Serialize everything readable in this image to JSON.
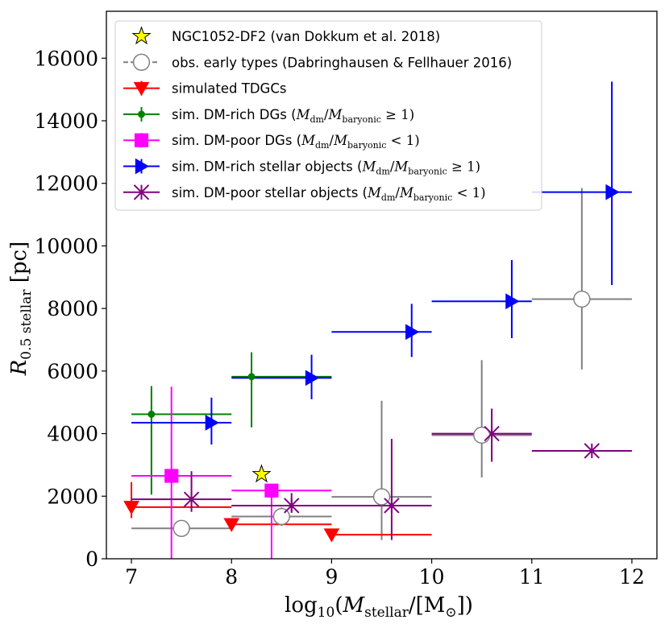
{
  "chart_data": {
    "type": "scatter",
    "xlabel": {
      "pre": "log",
      "sub1": "10",
      "mid": "(",
      "var": "M",
      "sub2": "stellar",
      "post": "/[M",
      "sub3": "⊙",
      "end": "])"
    },
    "ylabel": {
      "var": "R",
      "sub": "0.5 stellar",
      "post": " [pc]"
    },
    "xlim": [
      6.75,
      12.25
    ],
    "ylim": [
      0,
      17500
    ],
    "xticks": [
      7,
      8,
      9,
      10,
      11,
      12
    ],
    "yticks": [
      0,
      2000,
      4000,
      6000,
      8000,
      10000,
      12000,
      14000,
      16000
    ],
    "xtick_labels": [
      "7",
      "8",
      "9",
      "10",
      "11",
      "12"
    ],
    "ytick_labels": [
      "0",
      "2000",
      "4000",
      "6000",
      "8000",
      "10000",
      "12000",
      "14000",
      "16000"
    ],
    "grid": false,
    "legend_position": "top-left",
    "series": [
      {
        "name": "NGC1052-DF2 (van Dokkum et al. 2018)",
        "color": "#ffff00",
        "marker": "star",
        "edge": "#000000",
        "points": [
          {
            "x": 8.3,
            "y": 2700
          }
        ]
      },
      {
        "name": "obs. early types (Dabringhausen & Fellhauer 2016)",
        "color": "#808080",
        "marker": "circle-open",
        "edge": "#808080",
        "points": [
          {
            "x": 7.5,
            "y": 970,
            "xerr": [
              7.0,
              8.0
            ],
            "yerr": [
              700,
              1100
            ]
          },
          {
            "x": 8.5,
            "y": 1350,
            "xerr": [
              8.0,
              9.0
            ],
            "yerr": [
              1050,
              1650
            ]
          },
          {
            "x": 9.5,
            "y": 1980,
            "xerr": [
              9.0,
              10.0
            ],
            "yerr": [
              600,
              5050
            ]
          },
          {
            "x": 10.5,
            "y": 3950,
            "xerr": [
              10.0,
              11.0
            ],
            "yerr": [
              2600,
              6350
            ]
          },
          {
            "x": 11.5,
            "y": 8300,
            "xerr": [
              11.0,
              12.0
            ],
            "yerr": [
              6050,
              11850
            ]
          }
        ]
      },
      {
        "name": "simulated TDGCs",
        "color": "#ff0000",
        "marker": "triangle-down",
        "edge": "#ff0000",
        "points": [
          {
            "x": 7.0,
            "y": 1650,
            "xerr": [
              7.0,
              8.0
            ],
            "yerr": [
              1300,
              2450
            ]
          },
          {
            "x": 8.0,
            "y": 1100,
            "xerr": [
              8.0,
              9.0
            ],
            "yerr": [
              1050,
              1150
            ]
          },
          {
            "x": 9.0,
            "y": 770,
            "xerr": [
              9.0,
              10.0
            ],
            "yerr": [
              760,
              780
            ]
          }
        ]
      },
      {
        "name": "sim. DM-rich DGs",
        "math": "M_dm/M_baryonic ≥ 1",
        "color": "#008000",
        "marker": "dot",
        "edge": "#008000",
        "points": [
          {
            "x": 7.2,
            "y": 4620,
            "xerr": [
              7.0,
              8.0
            ],
            "yerr": [
              2050,
              5520
            ]
          },
          {
            "x": 8.2,
            "y": 5820,
            "xerr": [
              8.0,
              9.0
            ],
            "yerr": [
              4200,
              6600
            ]
          }
        ]
      },
      {
        "name": "sim. DM-poor DGs",
        "math": "M_dm/M_baryonic < 1",
        "color": "#ff00ff",
        "marker": "square",
        "edge": "#ff00ff",
        "points": [
          {
            "x": 7.4,
            "y": 2650,
            "xerr": [
              7.0,
              8.0
            ],
            "yerr": [
              0,
              5500
            ]
          },
          {
            "x": 8.4,
            "y": 2180,
            "xerr": [
              8.0,
              9.0
            ],
            "yerr": [
              0,
              2180
            ]
          }
        ]
      },
      {
        "name": "sim. DM-rich stellar objects",
        "math": "M_dm/M_baryonic ≥ 1",
        "color": "#0000ff",
        "marker": "triangle-right",
        "edge": "#0000ff",
        "points": [
          {
            "x": 7.8,
            "y": 4350,
            "xerr": [
              7.0,
              8.0
            ],
            "yerr": [
              3650,
              5150
            ]
          },
          {
            "x": 8.8,
            "y": 5780,
            "xerr": [
              8.0,
              9.0
            ],
            "yerr": [
              5100,
              6520
            ]
          },
          {
            "x": 9.8,
            "y": 7250,
            "xerr": [
              9.0,
              10.0
            ],
            "yerr": [
              6450,
              8150
            ]
          },
          {
            "x": 10.8,
            "y": 8230,
            "xerr": [
              10.0,
              11.0
            ],
            "yerr": [
              7050,
              9550
            ]
          },
          {
            "x": 11.8,
            "y": 11720,
            "xerr": [
              11.0,
              12.0
            ],
            "yerr": [
              8750,
              15250
            ]
          }
        ]
      },
      {
        "name": "sim. DM-poor stellar objects",
        "math": "M_dm/M_baryonic < 1",
        "color": "#800080",
        "marker": "x-star",
        "edge": "#800080",
        "points": [
          {
            "x": 7.6,
            "y": 1900,
            "xerr": [
              7.0,
              8.0
            ],
            "yerr": [
              1500,
              2800
            ]
          },
          {
            "x": 8.6,
            "y": 1700,
            "xerr": [
              8.0,
              9.0
            ],
            "yerr": [
              1500,
              2100
            ]
          },
          {
            "x": 9.6,
            "y": 1700,
            "xerr": [
              9.0,
              10.0
            ],
            "yerr": [
              600,
              3830
            ]
          },
          {
            "x": 10.6,
            "y": 4000,
            "xerr": [
              10.0,
              11.0
            ],
            "yerr": [
              3100,
              4800
            ]
          },
          {
            "x": 11.6,
            "y": 3450,
            "xerr": [
              11.0,
              12.0
            ],
            "yerr": [
              3450,
              3450
            ]
          }
        ]
      }
    ]
  }
}
